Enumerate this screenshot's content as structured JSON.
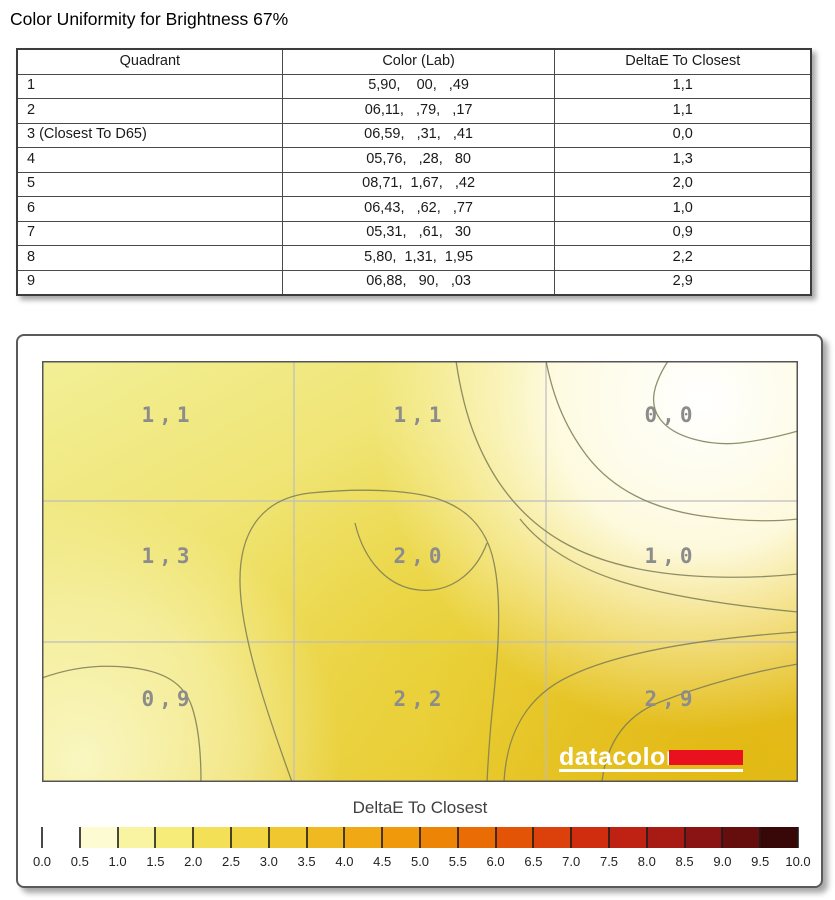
{
  "title": "Color Uniformity for Brightness 67%",
  "table": {
    "columns": [
      "Quadrant",
      "Color (Lab)",
      "DeltaE To Closest"
    ],
    "rows": [
      [
        "1",
        "5,90,    00,   ,49",
        "1,1"
      ],
      [
        "2",
        "06,11,   ,79,   ,17",
        "1,1"
      ],
      [
        "3 (Closest To D65)",
        "06,59,   ,31,   ,41",
        "0,0"
      ],
      [
        "4",
        "05,76,   ,28,   80",
        "1,3"
      ],
      [
        "5",
        "08,71,  1,67,   ,42",
        "2,0"
      ],
      [
        "6",
        "06,43,   ,62,   ,77",
        "1,0"
      ],
      [
        "7",
        "05,31,   ,61,   30",
        "0,9"
      ],
      [
        "8",
        "5,80,  1,31,  1,95",
        "2,2"
      ],
      [
        "9",
        "06,88,   90,   ,03",
        "2,9"
      ]
    ]
  },
  "chart_data": {
    "type": "heatmap",
    "title": "DeltaE To Closest",
    "grid_rows": 3,
    "grid_cols": 3,
    "cell_labels": [
      [
        "1,1",
        "1,1",
        "0,0"
      ],
      [
        "1,3",
        "2,0",
        "1,0"
      ],
      [
        "0,9",
        "2,2",
        "2,9"
      ]
    ],
    "values": [
      [
        1.1,
        1.1,
        0.0
      ],
      [
        1.3,
        2.0,
        1.0
      ],
      [
        0.9,
        2.2,
        2.9
      ]
    ],
    "label_color": "#8c8c8c",
    "contour_line_color": "#7d7d55",
    "grid_line_color": "#bdbdbd",
    "colorbar": {
      "title": "DeltaE To Closest",
      "min": 0.0,
      "max": 10.0,
      "step": 0.5,
      "tick_labels": [
        "0.0",
        "0.5",
        "1.0",
        "1.5",
        "2.0",
        "2.5",
        "3.0",
        "3.5",
        "4.0",
        "4.5",
        "5.0",
        "5.5",
        "6.0",
        "6.5",
        "7.0",
        "7.5",
        "8.0",
        "8.5",
        "9.0",
        "9.5",
        "10.0"
      ],
      "segment_colors": [
        "#ffffff",
        "#fdfbd2",
        "#f9f4a2",
        "#f6ec7a",
        "#f3e057",
        "#f1d440",
        "#f0c72f",
        "#f0b921",
        "#f0a915",
        "#ef990b",
        "#ee8406",
        "#ea6c05",
        "#e45407",
        "#dc400b",
        "#d02d0f",
        "#bf2113",
        "#a81a14",
        "#891413",
        "#660e0e",
        "#380707"
      ]
    }
  },
  "logo": {
    "text": "datacolor",
    "text_color": "#ffffff",
    "bar_color": "#e8111d"
  }
}
